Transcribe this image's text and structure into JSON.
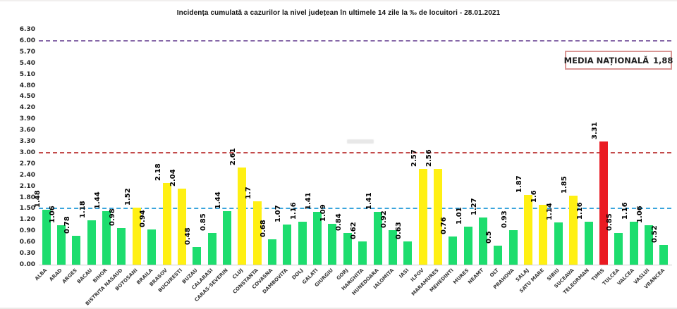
{
  "title": "Incidența cumulată a cazurilor la nivel județean în ultimele 14 zile la ‰ de locuitori - 28.01.2021",
  "national_average": {
    "label": "MEDIA NAȚIONALĂ",
    "value": "1,88"
  },
  "chart_data": {
    "type": "bar",
    "title": "Incidența cumulată a cazurilor la nivel județean în ultimele 14 zile la ‰ de locuitori - 28.01.2021",
    "xlabel": "",
    "ylabel": "",
    "ylim": [
      0,
      6.3
    ],
    "ytick_step": 0.3,
    "grid": false,
    "legend": "none",
    "categories": [
      "ALBA",
      "ARAD",
      "ARGES",
      "BACAU",
      "BIHOR",
      "BISTRITA NASAUD",
      "BOTOSANI",
      "BRAILA",
      "BRASOV",
      "BUCURESTI",
      "BUZAU",
      "CALARASI",
      "CARAS-SEVERIN",
      "CLUJ",
      "CONSTANTA",
      "COVASNA",
      "DAMBOVITA",
      "DOLJ",
      "GALATI",
      "GIURGIU",
      "GORJ",
      "HARGHITA",
      "HUNEDOARA",
      "IALOMITA",
      "IASI",
      "ILFOV",
      "MARAMURES",
      "MEHEDINTI",
      "MURES",
      "NEAMT",
      "OLT",
      "PRAHOVA",
      "SALAJ",
      "SATU MARE",
      "SIBIU",
      "SUCEAVA",
      "TELEORMAN",
      "TIMIS",
      "TULCEA",
      "VALCEA",
      "VASLUI",
      "VRANCEA"
    ],
    "values": [
      1.48,
      1.06,
      0.78,
      1.18,
      1.44,
      0.98,
      1.52,
      0.94,
      2.18,
      2.04,
      0.48,
      0.85,
      1.44,
      2.61,
      1.7,
      0.68,
      1.07,
      1.16,
      1.41,
      1.09,
      0.84,
      0.62,
      1.41,
      0.92,
      0.63,
      2.57,
      2.56,
      0.76,
      1.01,
      1.27,
      0.5,
      0.93,
      1.87,
      1.6,
      1.14,
      1.85,
      1.16,
      3.31,
      0.85,
      1.16,
      1.06,
      0.52
    ],
    "display_values": [
      "1.48",
      "1.06",
      "0.78",
      "1.18",
      "1.44",
      "0.98",
      "1.52",
      "0.94",
      "2.18",
      "2.04",
      "0.48",
      "0.85",
      "1.44",
      "2.61",
      "1.7",
      "0.68",
      "1.07",
      "1.16",
      "1.41",
      "1.09",
      "0.84",
      "0.62",
      "1.41",
      "0.92",
      "0.63",
      "2.57",
      "2.56",
      "0.76",
      "1.01",
      "1.27",
      "0.5",
      "0.93",
      "1.87",
      "1.6",
      "1.14",
      "1.85",
      "1.16",
      "3.31",
      "0.85",
      "1.16",
      "1.06",
      "0.52"
    ],
    "bar_color_classes": [
      "green",
      "green",
      "green",
      "green",
      "green",
      "green",
      "yellow",
      "green",
      "yellow",
      "yellow",
      "green",
      "green",
      "green",
      "yellow",
      "yellow",
      "green",
      "green",
      "green",
      "green",
      "green",
      "green",
      "green",
      "green",
      "green",
      "green",
      "yellow",
      "yellow",
      "green",
      "green",
      "green",
      "green",
      "green",
      "yellow",
      "yellow",
      "green",
      "yellow",
      "green",
      "red",
      "green",
      "green",
      "green",
      "green"
    ],
    "palette": {
      "green": "#1ddd6e",
      "yellow": "#fff013",
      "red": "#ea1b22"
    },
    "thresholds": [
      {
        "label": "1.50",
        "value": 1.5,
        "color": "#3aa5dc",
        "style": "dashed"
      },
      {
        "label": "3.00",
        "value": 3.0,
        "color": "#c34b4b",
        "style": "dashed"
      },
      {
        "label": "6.00",
        "value": 6.0,
        "color": "#8668a8",
        "style": "dashed"
      }
    ]
  }
}
